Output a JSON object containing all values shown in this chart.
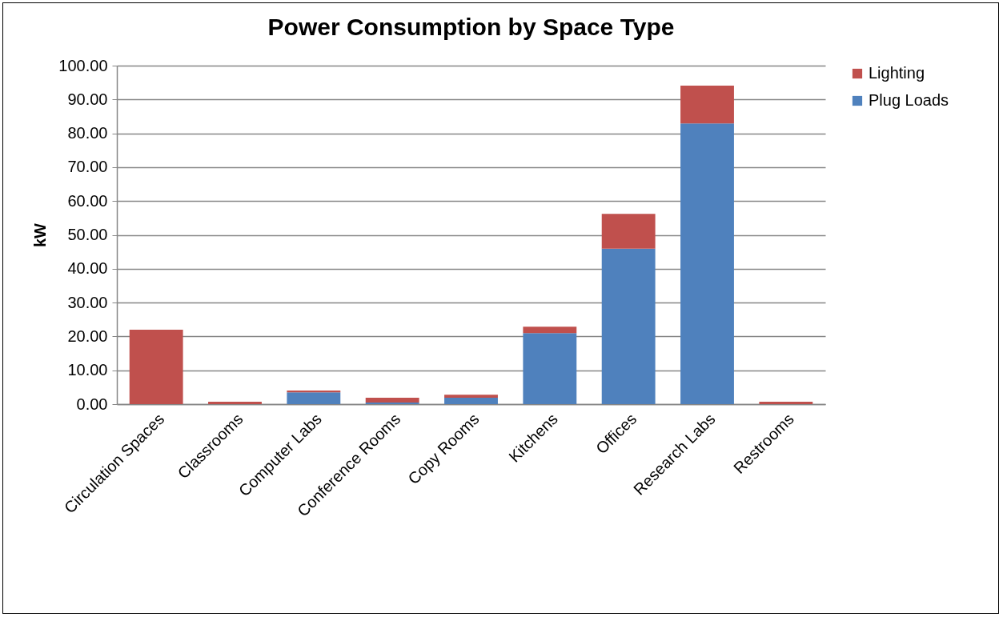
{
  "chart_data": {
    "type": "bar",
    "title": "Power Consumption by Space Type",
    "ylabel": "kW",
    "stacked": true,
    "categories": [
      "Circulation Spaces",
      "Classrooms",
      "Computer Labs",
      "Conference Rooms",
      "Copy Rooms",
      "Kitchens",
      "Offices",
      "Research Labs",
      "Restrooms"
    ],
    "series": [
      {
        "name": "Plug Loads",
        "color": "#4f81bd",
        "values": [
          0,
          0,
          3.5,
          0.5,
          1.9,
          21.0,
          45.9,
          82.9,
          0
        ]
      },
      {
        "name": "Lighting",
        "color": "#c0504d",
        "values": [
          22.0,
          0.7,
          0.5,
          1.4,
          0.9,
          1.9,
          10.3,
          11.2,
          0.7
        ]
      }
    ],
    "ylim": [
      0,
      100
    ],
    "yticks": [
      {
        "value": 0,
        "label": "0.00"
      },
      {
        "value": 10,
        "label": "10.00"
      },
      {
        "value": 20,
        "label": "20.00"
      },
      {
        "value": 30,
        "label": "30.00"
      },
      {
        "value": 40,
        "label": "40.00"
      },
      {
        "value": 50,
        "label": "50.00"
      },
      {
        "value": 60,
        "label": "60.00"
      },
      {
        "value": 70,
        "label": "70.00"
      },
      {
        "value": 80,
        "label": "80.00"
      },
      {
        "value": 90,
        "label": "90.00"
      },
      {
        "value": 100,
        "label": "100.00"
      }
    ],
    "grid": "y",
    "legend": "right"
  }
}
